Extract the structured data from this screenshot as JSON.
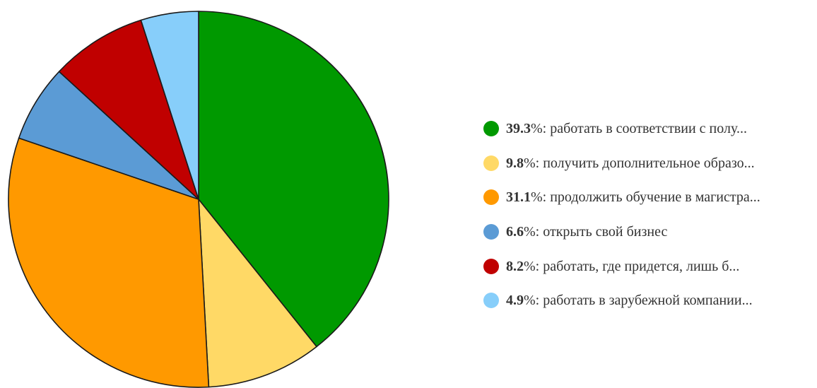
{
  "chart_data": {
    "type": "pie",
    "title": "",
    "legend_position": "right",
    "slices": [
      {
        "value": 39.3,
        "value_label": "39.3",
        "label": "работать в соответствии с полу...",
        "color": "#009900"
      },
      {
        "value": 9.8,
        "value_label": "9.8",
        "label": "получить дополнительное образо...",
        "color": "#ffd966"
      },
      {
        "value": 31.1,
        "value_label": "31.1",
        "label": "продолжить обучение в магистра...",
        "color": "#ff9900"
      },
      {
        "value": 6.6,
        "value_label": "6.6",
        "label": "открыть свой бизнес",
        "color": "#5b9bd5"
      },
      {
        "value": 8.2,
        "value_label": "8.2",
        "label": "работать, где придется, лишь б...",
        "color": "#c00000"
      },
      {
        "value": 4.9,
        "value_label": "4.9",
        "label": "работать в зарубежной компании...",
        "color": "#87cefa"
      }
    ]
  }
}
